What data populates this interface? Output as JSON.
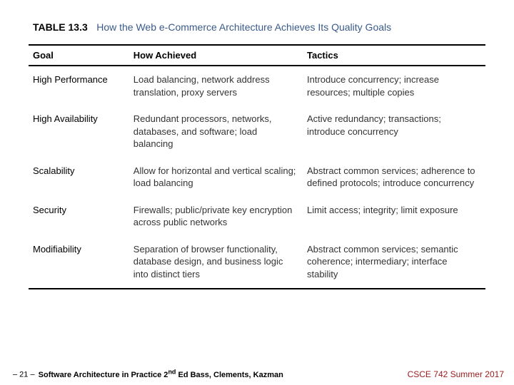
{
  "colors": {
    "title_color": "#3a5a8a",
    "rule_color": "#000000",
    "footer_right_color": "#9a1b1b",
    "text_color": "#333333",
    "background": "#ffffff"
  },
  "typography": {
    "base_font": "Arial, Helvetica, sans-serif",
    "title_fontsize_pt": 14,
    "header_fontsize_pt": 13,
    "body_fontsize_pt": 13,
    "footer_fontsize_pt": 11
  },
  "table": {
    "label": "TABLE 13.3",
    "title": "How the Web e-Commerce Architecture Achieves Its Quality Goals",
    "columns": [
      "Goal",
      "How Achieved",
      "Tactics"
    ],
    "column_widths_pct": [
      22,
      38,
      40
    ],
    "rows": [
      {
        "goal": "High Performance",
        "how": "Load balancing, network address translation, proxy servers",
        "tactics": "Introduce concurrency; increase resources; multiple copies"
      },
      {
        "goal": "High Availability",
        "how": "Redundant processors, networks, databases, and software; load balancing",
        "tactics": "Active redundancy; transactions; introduce concurrency"
      },
      {
        "goal": "Scalability",
        "how": "Allow for horizontal and vertical scaling; load balancing",
        "tactics": "Abstract common services; adherence to defined protocols; introduce concurrency"
      },
      {
        "goal": "Security",
        "how": "Firewalls; public/private key encryption across public networks",
        "tactics": "Limit access; integrity; limit exposure"
      },
      {
        "goal": "Modifiability",
        "how": "Separation of browser functionality, database design, and business logic into distinct tiers",
        "tactics": "Abstract common services; semantic coherence; intermediary; interface stability"
      }
    ]
  },
  "footer": {
    "page_marker": "– 21 –",
    "book_prefix": "Software Architecture in Practice 2",
    "book_ed_suffix": "nd",
    "book_rest": " Ed  Bass, Clements, Kazman",
    "course": "CSCE 742 Summer 2017"
  }
}
